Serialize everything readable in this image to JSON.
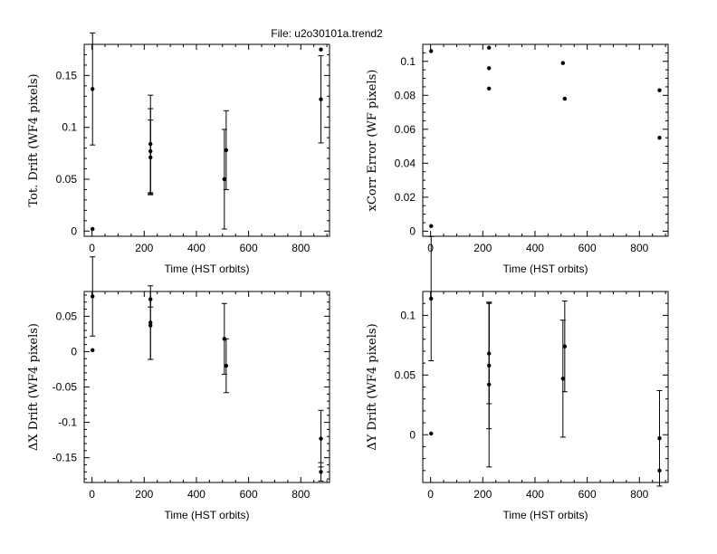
{
  "file_title": "File: u2o30101a.trend2",
  "chart_data": [
    {
      "type": "scatter",
      "ylabel": "Tot. Drift (WF4 pixels)",
      "xlabel": "Time (HST orbits)",
      "xlim": [
        -30,
        910
      ],
      "ylim": [
        -0.005,
        0.18
      ],
      "xticks": [
        0,
        200,
        400,
        600,
        800
      ],
      "xtick_labels": [
        "0",
        "200",
        "400",
        "600",
        "800"
      ],
      "yticks": [
        0,
        0.05,
        0.1,
        0.15
      ],
      "ytick_labels": [
        "0",
        "0.05",
        "0.1",
        "0.15"
      ],
      "grid": false,
      "points": [
        {
          "x": 2,
          "y": 0.002
        },
        {
          "x": 2,
          "y": 0.137,
          "err": 0.054
        },
        {
          "x": 224,
          "y": 0.084,
          "err": 0.047
        },
        {
          "x": 224,
          "y": 0.077,
          "err": 0.041
        },
        {
          "x": 224,
          "y": 0.071,
          "err": 0.036
        },
        {
          "x": 507,
          "y": 0.05,
          "err": 0.048
        },
        {
          "x": 514,
          "y": 0.078,
          "err": 0.038
        },
        {
          "x": 877,
          "y": 0.175
        },
        {
          "x": 877,
          "y": 0.127,
          "err": 0.042
        }
      ]
    },
    {
      "type": "scatter",
      "ylabel": "xCorr Error (WF pixels)",
      "xlabel": "Time (HST orbits)",
      "xlim": [
        -30,
        910
      ],
      "ylim": [
        -0.003,
        0.11
      ],
      "xticks": [
        0,
        200,
        400,
        600,
        800
      ],
      "xtick_labels": [
        "0",
        "200",
        "400",
        "600",
        "800"
      ],
      "yticks": [
        0,
        0.02,
        0.04,
        0.06,
        0.08,
        0.1
      ],
      "ytick_labels": [
        "0",
        "0.02",
        "0.04",
        "0.06",
        "0.08",
        "0.1"
      ],
      "grid": false,
      "points": [
        {
          "x": 2,
          "y": 0.106
        },
        {
          "x": 2,
          "y": 0.003
        },
        {
          "x": 224,
          "y": 0.108
        },
        {
          "x": 224,
          "y": 0.096
        },
        {
          "x": 224,
          "y": 0.084
        },
        {
          "x": 507,
          "y": 0.099
        },
        {
          "x": 514,
          "y": 0.078
        },
        {
          "x": 877,
          "y": 0.083
        },
        {
          "x": 877,
          "y": 0.055
        }
      ]
    },
    {
      "type": "scatter",
      "ylabel": "ΔX Drift (WF4 pixels)",
      "xlabel": "Time (HST orbits)",
      "xlim": [
        -30,
        910
      ],
      "ylim": [
        -0.185,
        0.085
      ],
      "xticks": [
        0,
        200,
        400,
        600,
        800
      ],
      "xtick_labels": [
        "0",
        "200",
        "400",
        "600",
        "800"
      ],
      "yticks": [
        -0.15,
        -0.1,
        -0.05,
        0,
        0.05
      ],
      "ytick_labels": [
        "-0.15",
        "-0.1",
        "-0.05",
        "0",
        "0.05"
      ],
      "grid": false,
      "points": [
        {
          "x": 2,
          "y": 0.078,
          "err": 0.056
        },
        {
          "x": 2,
          "y": 0.002
        },
        {
          "x": 224,
          "y": 0.074,
          "err": 0.011
        },
        {
          "x": 224,
          "y": 0.041,
          "err": 0.052
        },
        {
          "x": 224,
          "y": 0.037,
          "err": 0.048
        },
        {
          "x": 507,
          "y": 0.018,
          "err": 0.05
        },
        {
          "x": 514,
          "y": -0.02,
          "err": 0.038
        },
        {
          "x": 877,
          "y": -0.123,
          "err": 0.04
        },
        {
          "x": 877,
          "y": -0.17,
          "err": 0.013
        }
      ]
    },
    {
      "type": "scatter",
      "ylabel": "ΔY Drift (WF4 pixels)",
      "xlabel": "Time (HST orbits)",
      "xlim": [
        -30,
        910
      ],
      "ylim": [
        -0.04,
        0.12
      ],
      "xticks": [
        0,
        200,
        400,
        600,
        800
      ],
      "xtick_labels": [
        "0",
        "200",
        "400",
        "600",
        "800"
      ],
      "yticks": [
        0,
        0.05,
        0.1
      ],
      "ytick_labels": [
        "0",
        "0.05",
        "0.1"
      ],
      "grid": false,
      "points": [
        {
          "x": 2,
          "y": 0.114,
          "err": 0.052
        },
        {
          "x": 2,
          "y": 0.001
        },
        {
          "x": 224,
          "y": 0.068,
          "err": 0.042
        },
        {
          "x": 224,
          "y": 0.058,
          "err": 0.053
        },
        {
          "x": 224,
          "y": 0.042,
          "err": 0.069
        },
        {
          "x": 507,
          "y": 0.047,
          "err": 0.049
        },
        {
          "x": 514,
          "y": 0.074,
          "err": 0.038
        },
        {
          "x": 877,
          "y": -0.003,
          "err": 0.04
        },
        {
          "x": 877,
          "y": -0.03
        }
      ]
    }
  ]
}
